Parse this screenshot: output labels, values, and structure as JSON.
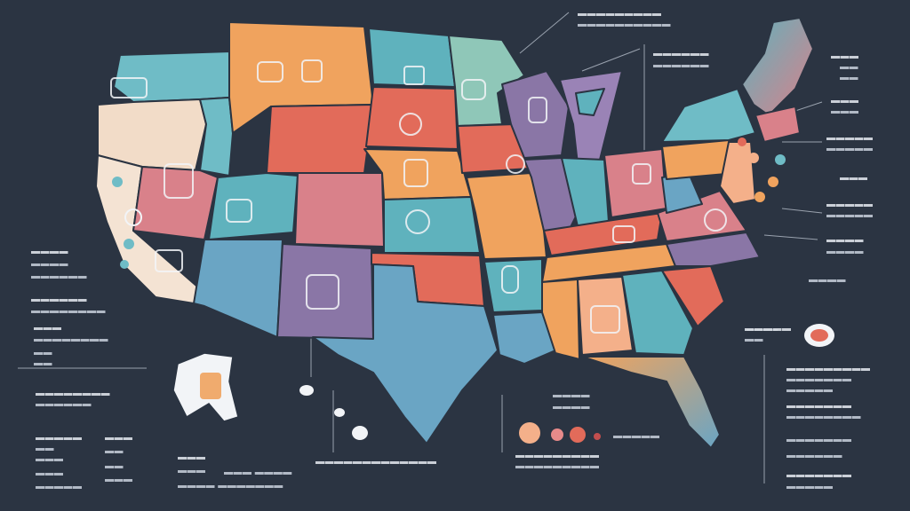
{
  "colors": {
    "background": "#2b3442",
    "teal": "#5fb2bd",
    "orange": "#f0a35e",
    "coral": "#e26b5a",
    "purple": "#8a76a6",
    "rose": "#d9818a",
    "sand": "#f2dcc8",
    "blue": "#6aa5c4",
    "peach": "#f4b08a"
  },
  "icons": [
    "pill-bottle-icon",
    "medical-kit-icon",
    "clipboard-icon",
    "capsule-icon",
    "heart-icon",
    "hospital-icon"
  ],
  "map": {
    "region": "United States",
    "insets": [
      "Alaska",
      "Hawaii"
    ]
  },
  "legend_dots": [
    "#f4b08a",
    "#e88a8a",
    "#e26b5a",
    "#c24e4e"
  ]
}
